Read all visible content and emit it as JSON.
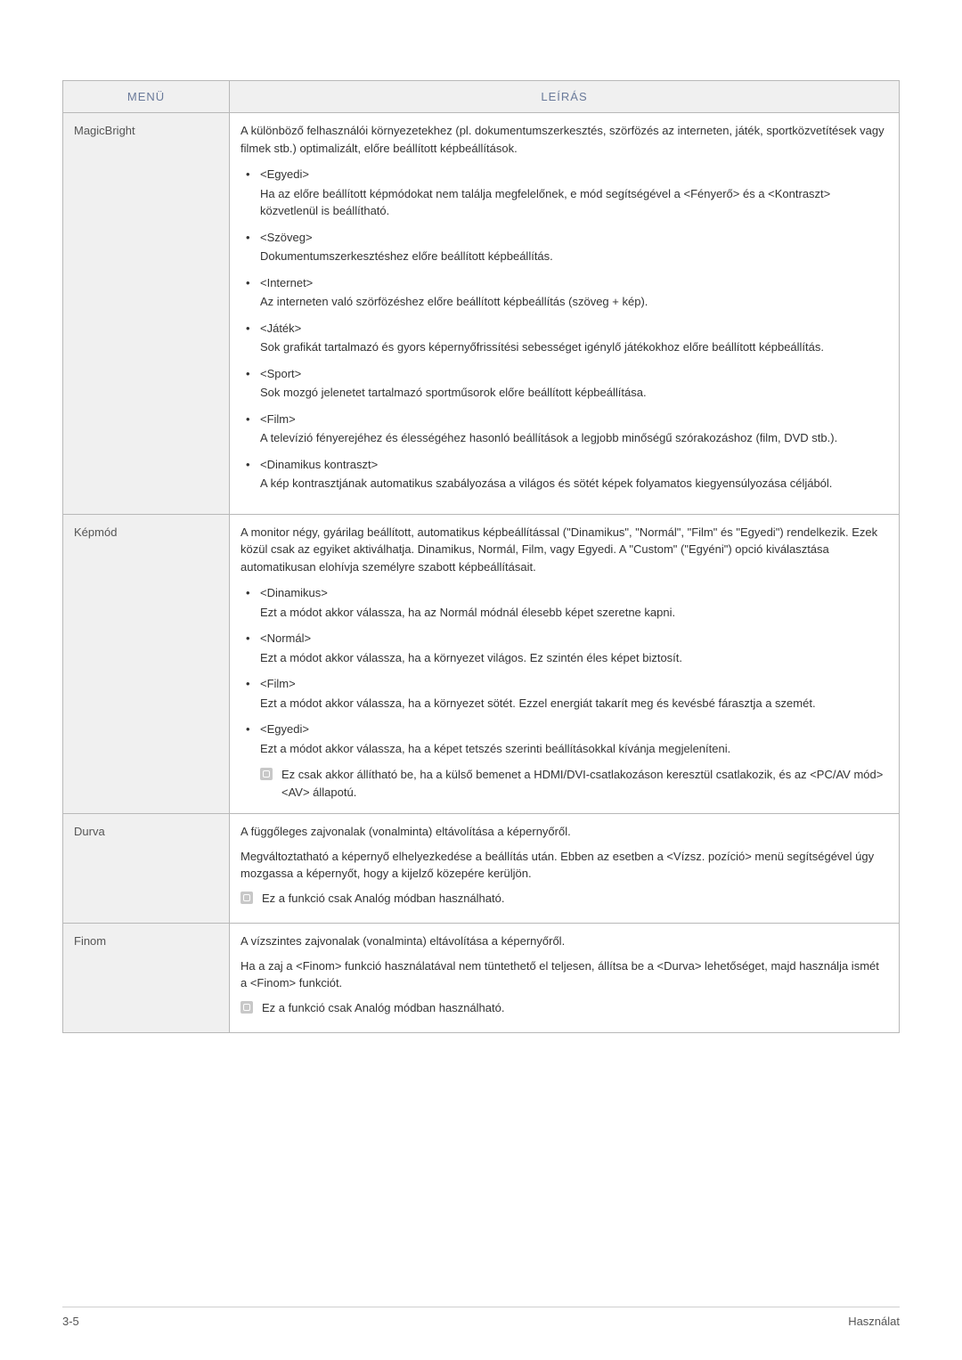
{
  "table": {
    "headers": {
      "menu": "MENÜ",
      "desc": "LEÍRÁS"
    },
    "rows": [
      {
        "label": "MagicBright",
        "intro": "A különböző felhasználói környezetekhez (pl. dokumentumszerkesztés, szörfözés az interneten, játék, sportközvetítések vagy filmek stb.) optimalizált, előre beállított képbeállítások.",
        "options": [
          {
            "title": "<Egyedi>",
            "body": "Ha az előre beállított képmódokat nem találja megfelelőnek, e mód segítségével a <Fényerő> és a <Kontraszt> közvetlenül is beállítható."
          },
          {
            "title": "<Szöveg>",
            "body": "Dokumentumszerkesztéshez előre beállított képbeállítás."
          },
          {
            "title": "<Internet>",
            "body": "Az interneten való szörfözéshez előre beállított képbeállítás (szöveg + kép)."
          },
          {
            "title": "<Játék>",
            "body": "Sok grafikát tartalmazó és gyors képernyőfrissítési sebességet igénylő játékokhoz előre beállított képbeállítás."
          },
          {
            "title": "<Sport>",
            "body": "Sok mozgó jelenetet tartalmazó sportműsorok előre beállított képbeállítása."
          },
          {
            "title": "<Film>",
            "body": "A televízió fényerejéhez és élességéhez hasonló beállítások a legjobb minőségű szórakozáshoz (film, DVD stb.)."
          },
          {
            "title": "<Dinamikus kontraszt>",
            "body": "A kép kontrasztjának automatikus szabályozása a világos és sötét képek folyamatos kiegyensúlyozása céljából."
          }
        ]
      },
      {
        "label": "Képmód",
        "intro": "A monitor négy, gyárilag beállított, automatikus képbeállítással (\"Dinamikus\", \"Normál\", \"Film\" és \"Egyedi\") rendelkezik. Ezek közül csak az egyiket aktiválhatja. Dinamikus, Normál, Film, vagy Egyedi. A \"Custom\" (\"Egyéni\") opció kiválasztása automatikusan elohívja személyre szabott képbeállításait.",
        "options": [
          {
            "title": "<Dinamikus>",
            "body": "Ezt a módot akkor válassza, ha az Normál módnál élesebb képet szeretne kapni."
          },
          {
            "title": "<Normál>",
            "body": "Ezt a módot akkor válassza, ha a környezet világos. Ez szintén éles képet biztosít."
          },
          {
            "title": "<Film>",
            "body": "Ezt a módot akkor válassza, ha a környezet sötét. Ezzel energiát takarít meg és kevésbé fárasztja a szemét."
          },
          {
            "title": "<Egyedi>",
            "body": "Ezt a módot akkor válassza, ha a képet tetszés szerinti beállításokkal kívánja megjeleníteni."
          }
        ],
        "note": "Ez csak akkor állítható be, ha a külső bemenet a HDMI/DVI-csatlakozáson keresztül csatlakozik, és az <PC/AV mód> <AV> állapotú."
      },
      {
        "label": "Durva",
        "paras": [
          "A függőleges zajvonalak (vonalminta) eltávolítása a képernyőről.",
          "Megváltoztatható a képernyő elhelyezkedése a beállítás után. Ebben az esetben a <Vízsz. pozíció> menü segítségével úgy mozgassa a képernyőt, hogy a kijelző közepére kerüljön."
        ],
        "note": "Ez a funkció csak Analóg módban használható."
      },
      {
        "label": "Finom",
        "paras": [
          "A vízszintes zajvonalak (vonalminta) eltávolítása a képernyőről.",
          "Ha a zaj a <Finom> funkció használatával nem tüntethető el teljesen, állítsa be a <Durva> lehetőséget, majd használja ismét a <Finom> funkciót."
        ],
        "note": "Ez a funkció csak Analóg módban használható."
      }
    ]
  },
  "footer": {
    "left": "3-5",
    "right": "Használat"
  }
}
